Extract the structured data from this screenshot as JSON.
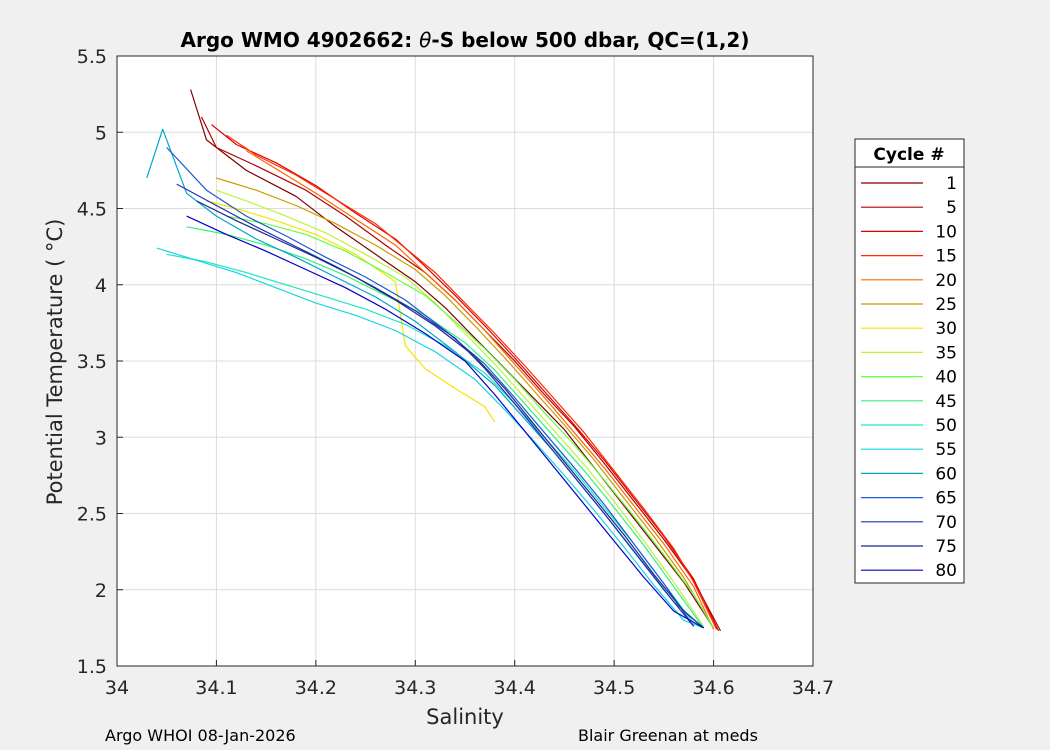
{
  "chart_data": {
    "type": "line",
    "title_prefix": "Argo WMO 4902662: ",
    "title_symbol": "θ",
    "title_suffix": "-S below 500 dbar,  QC=(1,2)",
    "xlabel": "Salinity",
    "ylabel": "Potential Temperature ( °C)",
    "xlim": [
      34.0,
      34.7
    ],
    "ylim": [
      1.5,
      5.5
    ],
    "x_ticks": [
      34,
      34.1,
      34.2,
      34.3,
      34.4,
      34.5,
      34.6,
      34.7
    ],
    "x_tick_labels": [
      "34",
      "34.1",
      "34.2",
      "34.3",
      "34.4",
      "34.5",
      "34.6",
      "34.7"
    ],
    "y_ticks": [
      1.5,
      2,
      2.5,
      3,
      3.5,
      4,
      4.5,
      5,
      5.5
    ],
    "y_tick_labels": [
      "1.5",
      "2",
      "2.5",
      "3",
      "3.5",
      "4",
      "4.5",
      "5",
      "5.5"
    ],
    "grid": true,
    "legend": {
      "title": "Cycle #",
      "position": "right-outside",
      "entries": [
        {
          "label": "1",
          "color": "#800000"
        },
        {
          "label": "5",
          "color": "#b00000"
        },
        {
          "label": "10",
          "color": "#e00000"
        },
        {
          "label": "15",
          "color": "#ff2a00"
        },
        {
          "label": "20",
          "color": "#ff6600"
        },
        {
          "label": "25",
          "color": "#cc9a00"
        },
        {
          "label": "30",
          "color": "#f2e600"
        },
        {
          "label": "35",
          "color": "#bff240"
        },
        {
          "label": "40",
          "color": "#66ff40"
        },
        {
          "label": "45",
          "color": "#33f080"
        },
        {
          "label": "50",
          "color": "#1ee6c0"
        },
        {
          "label": "55",
          "color": "#19d6e0"
        },
        {
          "label": "60",
          "color": "#00a6c8"
        },
        {
          "label": "65",
          "color": "#1a5ad0"
        },
        {
          "label": "70",
          "color": "#2030b0"
        },
        {
          "label": "75",
          "color": "#1a2890"
        },
        {
          "label": "80",
          "color": "#0000c8"
        }
      ]
    },
    "series": [
      {
        "name": "1",
        "color": "#800000",
        "salinity": [
          34.074,
          34.09,
          34.13,
          34.18,
          34.22,
          34.26,
          34.3,
          34.33,
          34.36,
          34.39,
          34.42,
          34.45,
          34.48,
          34.51,
          34.54,
          34.57,
          34.6
        ],
        "theta": [
          5.28,
          4.95,
          4.75,
          4.58,
          4.38,
          4.2,
          4.02,
          3.85,
          3.65,
          3.45,
          3.25,
          3.05,
          2.8,
          2.55,
          2.3,
          2.05,
          1.75
        ]
      },
      {
        "name": "5",
        "color": "#b00000",
        "salinity": [
          34.085,
          34.1,
          34.14,
          34.19,
          34.23,
          34.27,
          34.31,
          34.34,
          34.37,
          34.4,
          34.43,
          34.46,
          34.49,
          34.52,
          34.55,
          34.58,
          34.607
        ],
        "theta": [
          5.1,
          4.9,
          4.78,
          4.62,
          4.45,
          4.26,
          4.08,
          3.9,
          3.7,
          3.5,
          3.28,
          3.07,
          2.83,
          2.58,
          2.33,
          2.06,
          1.73
        ]
      },
      {
        "name": "10",
        "color": "#e00000",
        "salinity": [
          34.095,
          34.12,
          34.16,
          34.2,
          34.24,
          34.28,
          34.31,
          34.34,
          34.37,
          34.4,
          34.43,
          34.46,
          34.49,
          34.52,
          34.55,
          34.58,
          34.605
        ],
        "theta": [
          5.05,
          4.92,
          4.8,
          4.65,
          4.47,
          4.3,
          4.12,
          3.93,
          3.73,
          3.52,
          3.3,
          3.08,
          2.85,
          2.6,
          2.35,
          2.07,
          1.73
        ]
      },
      {
        "name": "15",
        "color": "#ff2a00",
        "salinity": [
          34.11,
          34.14,
          34.18,
          34.22,
          34.26,
          34.29,
          34.32,
          34.35,
          34.38,
          34.41,
          34.44,
          34.47,
          34.5,
          34.53,
          34.56,
          34.58,
          34.603
        ],
        "theta": [
          4.98,
          4.85,
          4.72,
          4.56,
          4.4,
          4.24,
          4.08,
          3.88,
          3.68,
          3.47,
          3.25,
          3.03,
          2.78,
          2.53,
          2.27,
          2.05,
          1.74
        ]
      },
      {
        "name": "20",
        "color": "#ff6600",
        "salinity": [
          34.13,
          34.16,
          34.2,
          34.24,
          34.28,
          34.31,
          34.34,
          34.37,
          34.4,
          34.43,
          34.46,
          34.49,
          34.52,
          34.55,
          34.58,
          34.6
        ],
        "theta": [
          4.88,
          4.76,
          4.6,
          4.43,
          4.26,
          4.08,
          3.9,
          3.7,
          3.48,
          3.26,
          3.03,
          2.8,
          2.55,
          2.3,
          2.02,
          1.74
        ]
      },
      {
        "name": "25",
        "color": "#cc9a00",
        "salinity": [
          34.1,
          34.14,
          34.18,
          34.22,
          34.26,
          34.3,
          34.33,
          34.36,
          34.39,
          34.42,
          34.45,
          34.48,
          34.51,
          34.54,
          34.57,
          34.6
        ],
        "theta": [
          4.7,
          4.62,
          4.52,
          4.4,
          4.26,
          4.1,
          3.93,
          3.73,
          3.52,
          3.3,
          3.08,
          2.85,
          2.6,
          2.35,
          2.08,
          1.75
        ]
      },
      {
        "name": "30",
        "color": "#f2e600",
        "salinity": [
          34.09,
          34.12,
          34.16,
          34.2,
          34.24,
          34.28,
          34.29,
          34.31,
          34.34,
          34.37,
          34.38
        ],
        "theta": [
          4.55,
          4.5,
          4.42,
          4.33,
          4.2,
          4.02,
          3.6,
          3.45,
          3.32,
          3.2,
          3.1
        ]
      },
      {
        "name": "35",
        "color": "#bff240",
        "salinity": [
          34.1,
          34.13,
          34.17,
          34.21,
          34.25,
          34.29,
          34.32,
          34.35,
          34.38,
          34.41,
          34.44,
          34.47,
          34.5,
          34.53,
          34.56,
          34.59
        ],
        "theta": [
          4.62,
          4.55,
          4.45,
          4.34,
          4.2,
          4.05,
          3.88,
          3.68,
          3.48,
          3.26,
          3.04,
          2.82,
          2.58,
          2.32,
          2.05,
          1.76
        ]
      },
      {
        "name": "40",
        "color": "#66ff40",
        "salinity": [
          34.11,
          34.15,
          34.19,
          34.23,
          34.27,
          34.31,
          34.34,
          34.37,
          34.4,
          34.43,
          34.46,
          34.49,
          34.52,
          34.55,
          34.58,
          34.6
        ],
        "theta": [
          4.45,
          4.4,
          4.33,
          4.22,
          4.08,
          3.93,
          3.76,
          3.58,
          3.38,
          3.16,
          2.95,
          2.72,
          2.48,
          2.23,
          1.97,
          1.75
        ]
      },
      {
        "name": "45",
        "color": "#33f080",
        "salinity": [
          34.07,
          34.11,
          34.15,
          34.19,
          34.23,
          34.27,
          34.31,
          34.35,
          34.38,
          34.41,
          34.44,
          34.47,
          34.5,
          34.53,
          34.56,
          34.59
        ],
        "theta": [
          4.38,
          4.33,
          4.26,
          4.17,
          4.06,
          3.93,
          3.8,
          3.62,
          3.44,
          3.22,
          3.0,
          2.78,
          2.54,
          2.29,
          2.02,
          1.75
        ]
      },
      {
        "name": "50",
        "color": "#1ee6c0",
        "salinity": [
          34.05,
          34.09,
          34.13,
          34.17,
          34.21,
          34.25,
          34.29,
          34.33,
          34.37,
          34.4,
          34.43,
          34.46,
          34.49,
          34.52,
          34.55,
          34.58
        ],
        "theta": [
          4.2,
          4.15,
          4.08,
          4.0,
          3.92,
          3.84,
          3.74,
          3.6,
          3.42,
          3.22,
          3.0,
          2.78,
          2.54,
          2.3,
          2.04,
          1.78
        ]
      },
      {
        "name": "55",
        "color": "#19d6e0",
        "salinity": [
          34.04,
          34.08,
          34.12,
          34.16,
          34.2,
          34.24,
          34.28,
          34.32,
          34.36,
          34.39,
          34.42,
          34.45,
          34.48,
          34.51,
          34.54,
          34.57,
          34.59
        ],
        "theta": [
          4.24,
          4.16,
          4.08,
          3.98,
          3.88,
          3.8,
          3.7,
          3.56,
          3.38,
          3.18,
          2.97,
          2.75,
          2.52,
          2.28,
          2.03,
          1.8,
          1.75
        ]
      },
      {
        "name": "60",
        "color": "#00a6c8",
        "salinity": [
          34.03,
          34.046,
          34.07,
          34.1,
          34.14,
          34.18,
          34.22,
          34.26,
          34.3,
          34.34,
          34.38,
          34.41,
          34.44,
          34.47,
          34.5,
          34.53,
          34.56,
          34.59
        ],
        "theta": [
          4.7,
          5.02,
          4.6,
          4.45,
          4.3,
          4.18,
          4.05,
          3.92,
          3.76,
          3.56,
          3.34,
          3.12,
          2.9,
          2.66,
          2.42,
          2.17,
          1.92,
          1.75
        ]
      },
      {
        "name": "65",
        "color": "#1a5ad0",
        "salinity": [
          34.05,
          34.09,
          34.13,
          34.17,
          34.21,
          34.25,
          34.29,
          34.33,
          34.37,
          34.4,
          34.43,
          34.46,
          34.49,
          34.52,
          34.55,
          34.58
        ],
        "theta": [
          4.9,
          4.62,
          4.45,
          4.32,
          4.18,
          4.05,
          3.9,
          3.7,
          3.48,
          3.26,
          3.03,
          2.8,
          2.56,
          2.3,
          2.04,
          1.76
        ]
      },
      {
        "name": "70",
        "color": "#2030b0",
        "salinity": [
          34.06,
          34.1,
          34.14,
          34.18,
          34.22,
          34.26,
          34.3,
          34.34,
          34.37,
          34.4,
          34.43,
          34.46,
          34.49,
          34.52,
          34.55,
          34.58
        ],
        "theta": [
          4.66,
          4.52,
          4.38,
          4.25,
          4.12,
          3.98,
          3.83,
          3.65,
          3.45,
          3.22,
          2.98,
          2.74,
          2.5,
          2.25,
          2.0,
          1.76
        ]
      },
      {
        "name": "75",
        "color": "#1a2890",
        "salinity": [
          34.08,
          34.12,
          34.16,
          34.2,
          34.24,
          34.28,
          34.32,
          34.36,
          34.39,
          34.42,
          34.45,
          34.48,
          34.51,
          34.54,
          34.57,
          34.59
        ],
        "theta": [
          4.55,
          4.42,
          4.3,
          4.18,
          4.05,
          3.9,
          3.73,
          3.53,
          3.32,
          3.08,
          2.84,
          2.6,
          2.36,
          2.1,
          1.86,
          1.75
        ]
      },
      {
        "name": "80",
        "color": "#0000c8",
        "salinity": [
          34.07,
          34.11,
          34.15,
          34.19,
          34.23,
          34.27,
          34.31,
          34.35,
          34.38,
          34.41,
          34.44,
          34.47,
          34.5,
          34.53,
          34.56,
          34.59
        ],
        "theta": [
          4.45,
          4.33,
          4.22,
          4.1,
          3.98,
          3.84,
          3.68,
          3.5,
          3.28,
          3.04,
          2.8,
          2.56,
          2.32,
          2.08,
          1.86,
          1.75
        ]
      }
    ]
  },
  "footer": {
    "left": "Argo WHOI 08-Jan-2026",
    "right": "Blair Greenan at meds"
  }
}
